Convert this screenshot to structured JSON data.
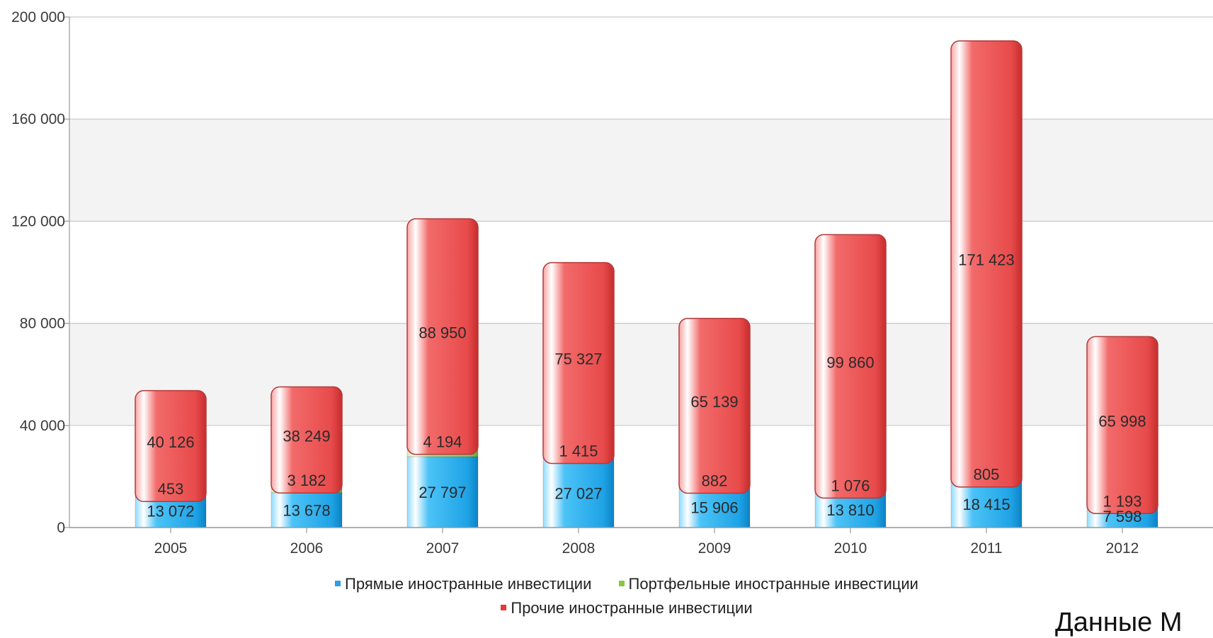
{
  "chart_data": {
    "type": "bar",
    "stacked": true,
    "title": "",
    "xlabel": "",
    "ylabel": "",
    "categories": [
      "2005",
      "2006",
      "2007",
      "2008",
      "2009",
      "2010",
      "2011",
      "2012"
    ],
    "ylim": [
      0,
      200000
    ],
    "yticks": [
      0,
      40000,
      80000,
      120000,
      160000,
      200000
    ],
    "ytick_labels": [
      "0",
      "40 000",
      "80 000",
      "120 000",
      "160 000",
      "200 000"
    ],
    "grid": true,
    "legend_position": "bottom",
    "series": [
      {
        "name": "Прямые иностранные инвестиции",
        "color": "#35b6ee",
        "values": [
          13072,
          13678,
          27797,
          27027,
          15906,
          13810,
          18415,
          7598
        ],
        "labels": [
          "13 072",
          "13 678",
          "27 797",
          "27 027",
          "15 906",
          "13 810",
          "18 415",
          "7 598"
        ]
      },
      {
        "name": "Портфельные иностранные инвестиции",
        "color": "#a8d86a",
        "values": [
          453,
          3182,
          4194,
          1415,
          882,
          1076,
          805,
          1193
        ],
        "labels": [
          "453",
          "3 182",
          "4 194",
          "1 415",
          "882",
          "1 076",
          "805",
          "1 193"
        ]
      },
      {
        "name": "Прочие иностранные инвестиции",
        "color": "#ef5b5b",
        "values": [
          40126,
          38249,
          88950,
          75327,
          65139,
          99860,
          171423,
          65998
        ],
        "labels": [
          "40 126",
          "38 249",
          "88 950",
          "75 327",
          "65 139",
          "99 860",
          "171 423",
          "65 998"
        ]
      }
    ]
  },
  "legend": {
    "items": [
      {
        "label": "Прямые иностранные инвестиции",
        "color": "#2f9ee6"
      },
      {
        "label": "Портфельные иностранные инвестиции",
        "color": "#8cc63f"
      },
      {
        "label": "Прочие иностранные инвестиции",
        "color": "#e53935"
      }
    ]
  },
  "source_note": "Данные М"
}
